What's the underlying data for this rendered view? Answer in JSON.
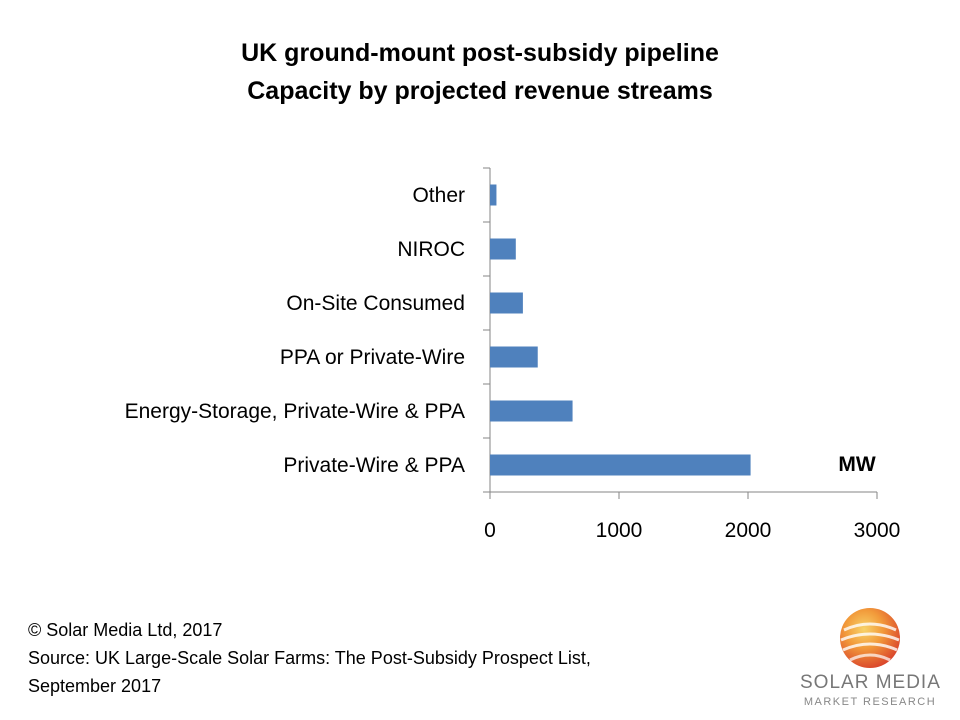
{
  "header": {
    "title_line1": "UK ground-mount post-subsidy pipeline",
    "title_line2": "Capacity by  projected revenue streams"
  },
  "chart_data": {
    "type": "bar",
    "orientation": "horizontal",
    "categories": [
      "Private-Wire & PPA",
      "Energy-Storage, Private-Wire & PPA",
      "PPA or Private-Wire",
      "On-Site Consumed",
      "NIROC",
      "Other"
    ],
    "values": [
      2020,
      640,
      370,
      255,
      200,
      50
    ],
    "xlim": [
      0,
      3000
    ],
    "xticks": [
      0,
      1000,
      2000,
      3000
    ],
    "unit_label": "MW",
    "bar_color": "#4f81bd",
    "grid": false,
    "legend": "none"
  },
  "footer": {
    "copyright": "© Solar Media Ltd, 2017",
    "source_line1": "Source: UK Large-Scale Solar Farms: The Post-Subsidy Prospect List,",
    "source_line2": "September 2017"
  },
  "logo": {
    "name": "SOLAR MEDIA",
    "subtitle": "MARKET RESEARCH"
  }
}
